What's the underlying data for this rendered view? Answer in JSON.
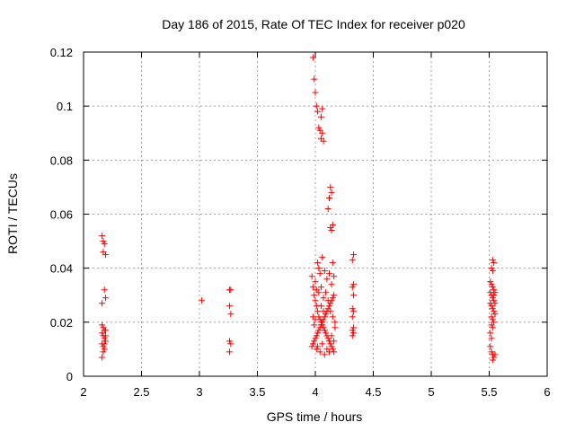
{
  "chart_data": {
    "type": "scatter",
    "title": "Day 186 of 2015, Rate Of TEC Index for receiver p020",
    "xlabel": "GPS time / hours",
    "ylabel": "ROTI / TECUs",
    "xlim": [
      2,
      6
    ],
    "ylim": [
      0,
      0.12
    ],
    "xticks": [
      2,
      2.5,
      3,
      3.5,
      4,
      4.5,
      5,
      5.5,
      6
    ],
    "xtick_labels": [
      "2",
      "2.5",
      "3",
      "3.5",
      "4",
      "4.5",
      "5",
      "5.5",
      "6"
    ],
    "yticks": [
      0,
      0.02,
      0.04,
      0.06,
      0.08,
      0.1,
      0.12
    ],
    "ytick_labels": [
      "0",
      "0.02",
      "0.04",
      "0.06",
      "0.08",
      "0.1",
      "0.12"
    ],
    "grid": true,
    "marker": "+",
    "marker_color": "#ff0000",
    "series": [
      {
        "name": "ROTI",
        "points": [
          [
            2.16,
            0.052
          ],
          [
            2.17,
            0.05
          ],
          [
            2.18,
            0.049
          ],
          [
            2.17,
            0.046
          ],
          [
            2.19,
            0.045
          ],
          [
            2.18,
            0.032
          ],
          [
            2.19,
            0.029
          ],
          [
            2.16,
            0.027
          ],
          [
            2.16,
            0.019
          ],
          [
            2.17,
            0.018
          ],
          [
            2.18,
            0.017
          ],
          [
            2.16,
            0.016
          ],
          [
            2.17,
            0.015
          ],
          [
            2.18,
            0.014
          ],
          [
            2.19,
            0.013
          ],
          [
            2.16,
            0.012
          ],
          [
            2.17,
            0.011
          ],
          [
            2.18,
            0.01
          ],
          [
            2.17,
            0.009
          ],
          [
            2.16,
            0.007
          ],
          [
            2.19,
            0.017
          ],
          [
            2.18,
            0.012
          ],
          [
            2.19,
            0.015
          ],
          [
            3.02,
            0.028
          ],
          [
            3.26,
            0.032
          ],
          [
            3.27,
            0.032
          ],
          [
            3.26,
            0.026
          ],
          [
            3.27,
            0.023
          ],
          [
            3.26,
            0.013
          ],
          [
            3.27,
            0.012
          ],
          [
            3.26,
            0.009
          ],
          [
            3.98,
            0.118
          ],
          [
            3.99,
            0.11
          ],
          [
            4.0,
            0.105
          ],
          [
            4.01,
            0.1
          ],
          [
            4.02,
            0.098
          ],
          [
            4.03,
            0.092
          ],
          [
            4.04,
            0.091
          ],
          [
            4.05,
            0.096
          ],
          [
            4.06,
            0.09
          ],
          [
            4.05,
            0.088
          ],
          [
            4.07,
            0.087
          ],
          [
            4.06,
            0.099
          ],
          [
            4.13,
            0.07
          ],
          [
            4.14,
            0.068
          ],
          [
            4.12,
            0.066
          ],
          [
            4.11,
            0.062
          ],
          [
            4.15,
            0.056
          ],
          [
            4.13,
            0.055
          ],
          [
            4.14,
            0.054
          ],
          [
            3.97,
            0.037
          ],
          [
            3.98,
            0.033
          ],
          [
            3.99,
            0.03
          ],
          [
            4.0,
            0.028
          ],
          [
            4.01,
            0.026
          ],
          [
            4.02,
            0.024
          ],
          [
            4.03,
            0.022
          ],
          [
            4.04,
            0.021
          ],
          [
            4.05,
            0.02
          ],
          [
            4.06,
            0.019
          ],
          [
            4.07,
            0.018
          ],
          [
            4.08,
            0.017
          ],
          [
            4.09,
            0.016
          ],
          [
            4.1,
            0.015
          ],
          [
            4.11,
            0.014
          ],
          [
            4.12,
            0.013
          ],
          [
            4.13,
            0.012
          ],
          [
            4.14,
            0.011
          ],
          [
            4.15,
            0.01
          ],
          [
            4.16,
            0.009
          ],
          [
            3.97,
            0.011
          ],
          [
            3.98,
            0.012
          ],
          [
            3.99,
            0.013
          ],
          [
            4.0,
            0.014
          ],
          [
            4.01,
            0.015
          ],
          [
            4.02,
            0.016
          ],
          [
            4.03,
            0.017
          ],
          [
            4.04,
            0.018
          ],
          [
            4.05,
            0.019
          ],
          [
            4.06,
            0.02
          ],
          [
            4.07,
            0.021
          ],
          [
            4.08,
            0.022
          ],
          [
            4.09,
            0.023
          ],
          [
            4.1,
            0.024
          ],
          [
            4.11,
            0.025
          ],
          [
            4.12,
            0.026
          ],
          [
            4.13,
            0.027
          ],
          [
            4.14,
            0.028
          ],
          [
            4.15,
            0.029
          ],
          [
            4.16,
            0.03
          ],
          [
            4.02,
            0.042
          ],
          [
            4.03,
            0.04
          ],
          [
            4.04,
            0.038
          ],
          [
            4.06,
            0.044
          ],
          [
            4.08,
            0.039
          ],
          [
            4.1,
            0.036
          ],
          [
            4.12,
            0.038
          ],
          [
            4.15,
            0.042
          ],
          [
            4.16,
            0.037
          ],
          [
            4.14,
            0.034
          ],
          [
            4.0,
            0.035
          ],
          [
            4.01,
            0.032
          ],
          [
            4.03,
            0.031
          ],
          [
            4.05,
            0.033
          ],
          [
            4.07,
            0.029
          ],
          [
            4.09,
            0.031
          ],
          [
            4.11,
            0.028
          ],
          [
            4.13,
            0.024
          ],
          [
            4.15,
            0.022
          ],
          [
            4.17,
            0.02
          ],
          [
            3.98,
            0.022
          ],
          [
            3.99,
            0.019
          ],
          [
            4.0,
            0.021
          ],
          [
            4.01,
            0.01
          ],
          [
            4.02,
            0.011
          ],
          [
            4.04,
            0.009
          ],
          [
            4.06,
            0.012
          ],
          [
            4.08,
            0.008
          ],
          [
            4.1,
            0.01
          ],
          [
            4.12,
            0.009
          ],
          [
            4.14,
            0.015
          ],
          [
            4.16,
            0.013
          ],
          [
            4.17,
            0.018
          ],
          [
            4.05,
            0.026
          ],
          [
            4.07,
            0.024
          ],
          [
            4.33,
            0.045
          ],
          [
            4.32,
            0.043
          ],
          [
            4.33,
            0.034
          ],
          [
            4.32,
            0.033
          ],
          [
            4.33,
            0.03
          ],
          [
            4.32,
            0.025
          ],
          [
            4.33,
            0.024
          ],
          [
            4.32,
            0.022
          ],
          [
            4.33,
            0.018
          ],
          [
            4.32,
            0.017
          ],
          [
            4.33,
            0.016
          ],
          [
            4.32,
            0.015
          ],
          [
            5.53,
            0.043
          ],
          [
            5.54,
            0.042
          ],
          [
            5.52,
            0.04
          ],
          [
            5.53,
            0.039
          ],
          [
            5.51,
            0.035
          ],
          [
            5.52,
            0.034
          ],
          [
            5.53,
            0.033
          ],
          [
            5.54,
            0.032
          ],
          [
            5.55,
            0.031
          ],
          [
            5.52,
            0.03
          ],
          [
            5.53,
            0.029
          ],
          [
            5.54,
            0.028
          ],
          [
            5.51,
            0.027
          ],
          [
            5.52,
            0.026
          ],
          [
            5.53,
            0.025
          ],
          [
            5.54,
            0.024
          ],
          [
            5.55,
            0.023
          ],
          [
            5.52,
            0.022
          ],
          [
            5.53,
            0.021
          ],
          [
            5.54,
            0.02
          ],
          [
            5.52,
            0.019
          ],
          [
            5.53,
            0.018
          ],
          [
            5.51,
            0.016
          ],
          [
            5.52,
            0.014
          ],
          [
            5.51,
            0.011
          ],
          [
            5.52,
            0.009
          ],
          [
            5.53,
            0.008
          ],
          [
            5.54,
            0.007
          ],
          [
            5.55,
            0.008
          ],
          [
            5.53,
            0.006
          ],
          [
            5.54,
            0.03
          ],
          [
            5.55,
            0.027
          ],
          [
            5.51,
            0.031
          ]
        ]
      }
    ]
  }
}
